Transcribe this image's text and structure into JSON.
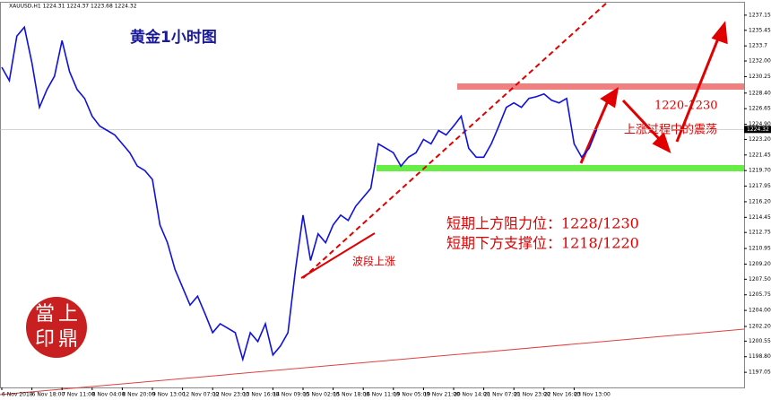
{
  "chart_data": {
    "type": "line",
    "header": "XAUUSD,H1  1224.31 1224.37 1223.68 1224.32",
    "title": "黄金1小时图",
    "annotations": {
      "resistance": "短期上方阻力位：1228/1230",
      "support": "短期下方支撑位：1218/1220",
      "wave": "波段上涨",
      "range": "1220-1230",
      "oscillation": "上涨过程中的震荡"
    },
    "stamp": [
      "當",
      "上",
      "印",
      "鼎"
    ],
    "color": "#1010e0",
    "last_price": 1224.32,
    "categories": [
      "6 Nov 2018",
      null,
      null,
      null,
      "6 Nov 18:00",
      null,
      null,
      null,
      "7 Nov 11:00",
      null,
      null,
      null,
      "8 Nov 04:00",
      null,
      null,
      null,
      "8 Nov 20:00",
      null,
      null,
      null,
      "9 Nov 13:00",
      null,
      null,
      null,
      "12 Nov 07:00",
      null,
      null,
      null,
      "12 Nov 23:00",
      null,
      null,
      null,
      "13 Nov 16:00",
      null,
      null,
      null,
      "14 Nov 09:00",
      null,
      null,
      null,
      "15 Nov 02:00",
      null,
      null,
      null,
      "15 Nov 18:00",
      null,
      null,
      null,
      "16 Nov 11:00",
      null,
      null,
      null,
      "19 Nov 05:00",
      null,
      null,
      null,
      "19 Nov 21:00",
      null,
      null,
      null,
      "20 Nov 14:00",
      null,
      null,
      null,
      "21 Nov 07:00",
      null,
      null,
      null,
      "21 Nov 23:00",
      null,
      null,
      null,
      "22 Nov 16:00",
      null,
      null,
      null,
      "23 Nov 13:00",
      null,
      null,
      null
    ],
    "values": [
      1231.3,
      1229.8,
      1234.8,
      1235.8,
      1231.8,
      1226.8,
      1228.8,
      1230.3,
      1234.3,
      1230.8,
      1228.8,
      1227.8,
      1225.8,
      1224.7,
      1224.2,
      1223.7,
      1222.7,
      1221.7,
      1220.2,
      1219.7,
      1218.7,
      1213.6,
      1211.6,
      1208.6,
      1206.6,
      1204.6,
      1205.6,
      1203.6,
      1201.5,
      1202.5,
      1202.0,
      1201.5,
      1198.5,
      1201.5,
      1200.5,
      1202.5,
      1199.0,
      1200.0,
      1201.5,
      1208.6,
      1214.7,
      1209.6,
      1212.6,
      1211.6,
      1213.6,
      1214.7,
      1214.1,
      1215.7,
      1216.7,
      1217.7,
      1222.7,
      1222.2,
      1221.7,
      1220.2,
      1221.2,
      1221.7,
      1223.2,
      1222.7,
      1224.2,
      1223.7,
      1224.7,
      1225.8,
      1222.2,
      1221.2,
      1221.2,
      1222.7,
      1224.7,
      1226.8,
      1227.3,
      1226.8,
      1227.8,
      1228.0,
      1228.3,
      1227.6,
      1227.3,
      1227.8,
      1222.7,
      1221.2,
      1222.2,
      1224.32
    ],
    "ylim": [
      1195.35,
      1238.65
    ],
    "yticks": [
      1237.15,
      1235.45,
      1233.7,
      {
        "value": 1232,
        "label": "1232.00"
      },
      1230.25,
      {
        "value": 1228.4,
        "label": "1228.40"
      },
      1226.65,
      {
        "value": 1224.9,
        "label": "1224.90"
      },
      {
        "value": 1223.2,
        "label": "1223.20"
      },
      1221.45,
      {
        "value": 1219.7,
        "label": "1219.70"
      },
      1217.95,
      {
        "value": 1216.2,
        "label": "1216.20"
      },
      1214.45,
      1212.75,
      1210.95,
      {
        "value": 1209.2,
        "label": "1209.20"
      },
      {
        "value": 1207.5,
        "label": "1207.50"
      },
      1205.75,
      {
        "value": 1204,
        "label": "1204.00"
      },
      {
        "value": 1202.2,
        "label": "1202.20"
      },
      1200.55,
      {
        "value": 1198.8,
        "label": "1198.80"
      },
      1197.05
    ]
  }
}
